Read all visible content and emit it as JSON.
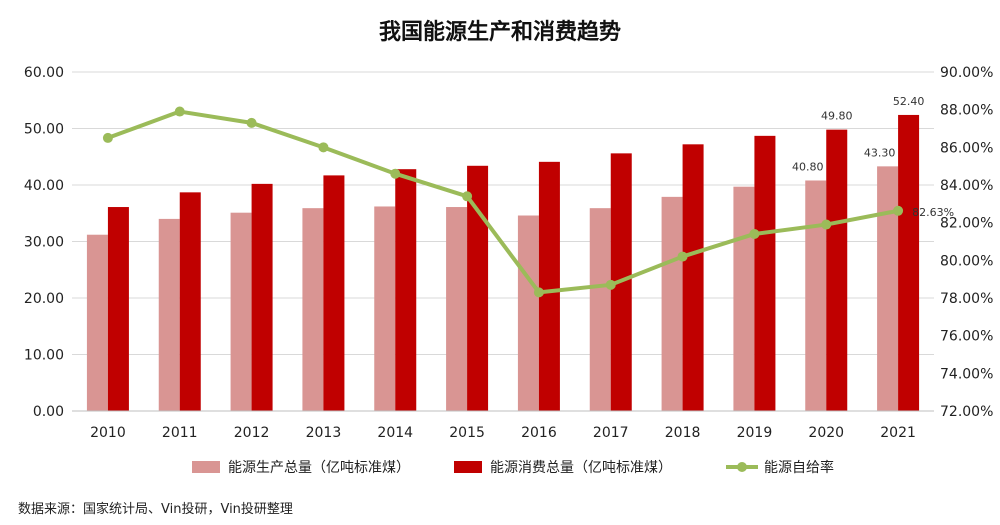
{
  "title": "我国能源生产和消费趋势",
  "source": "数据来源：国家统计局、Vin投研，Vin投研整理",
  "chart_data": {
    "type": "bar",
    "title": "我国能源生产和消费趋势",
    "categories": [
      "2010",
      "2011",
      "2012",
      "2013",
      "2014",
      "2015",
      "2016",
      "2017",
      "2018",
      "2019",
      "2020",
      "2021"
    ],
    "y_left": {
      "min": 0,
      "max": 60,
      "step": 10,
      "tick_labels": [
        "0.00",
        "10.00",
        "20.00",
        "30.00",
        "40.00",
        "50.00",
        "60.00"
      ]
    },
    "y_right": {
      "min": 72,
      "max": 90,
      "step": 2,
      "tick_labels": [
        "72.00%",
        "74.00%",
        "76.00%",
        "78.00%",
        "80.00%",
        "82.00%",
        "84.00%",
        "86.00%",
        "88.00%",
        "90.00%"
      ]
    },
    "series": [
      {
        "name": "能源生产总量（亿吨标准煤）",
        "type": "bar",
        "axis": "left",
        "color": "#d99593",
        "values": [
          31.2,
          34.0,
          35.1,
          35.9,
          36.2,
          36.1,
          34.6,
          35.9,
          37.9,
          39.7,
          40.8,
          43.3
        ],
        "labels": [
          "",
          "",
          "",
          "",
          "",
          "",
          "",
          "",
          "",
          "",
          "40.80",
          "43.30"
        ]
      },
      {
        "name": "能源消费总量（亿吨标准煤）",
        "type": "bar",
        "axis": "left",
        "color": "#c00000",
        "values": [
          36.1,
          38.7,
          40.2,
          41.7,
          42.8,
          43.4,
          44.1,
          45.6,
          47.2,
          48.7,
          49.8,
          52.4
        ],
        "labels": [
          "",
          "",
          "",
          "",
          "",
          "",
          "",
          "",
          "",
          "",
          "49.80",
          "52.40"
        ]
      },
      {
        "name": "能源自给率",
        "type": "line",
        "axis": "right",
        "color": "#9bbb59",
        "values": [
          86.5,
          87.9,
          87.3,
          86.0,
          84.6,
          83.4,
          78.3,
          78.7,
          80.2,
          81.4,
          81.9,
          82.63
        ],
        "labels": [
          "",
          "",
          "",
          "",
          "",
          "",
          "",
          "",
          "",
          "",
          "",
          "82.63%"
        ]
      }
    ],
    "legend_position": "bottom",
    "grid": true
  }
}
